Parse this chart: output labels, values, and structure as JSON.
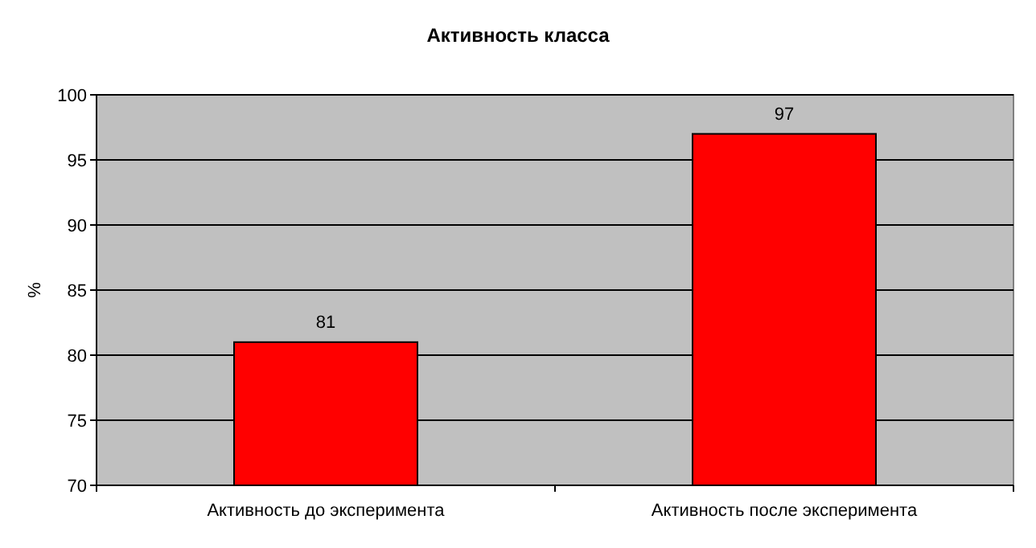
{
  "chart_data": {
    "type": "bar",
    "title": "Активность класса",
    "ylabel": "%",
    "categories": [
      "Активность до эксперимента",
      "Активность после эксперимента"
    ],
    "values": [
      81,
      97
    ],
    "color": "#ff0000",
    "ylim": [
      70,
      100
    ],
    "yticks": [
      70,
      75,
      80,
      85,
      90,
      95,
      100
    ],
    "grid": "y",
    "data_labels": true
  }
}
